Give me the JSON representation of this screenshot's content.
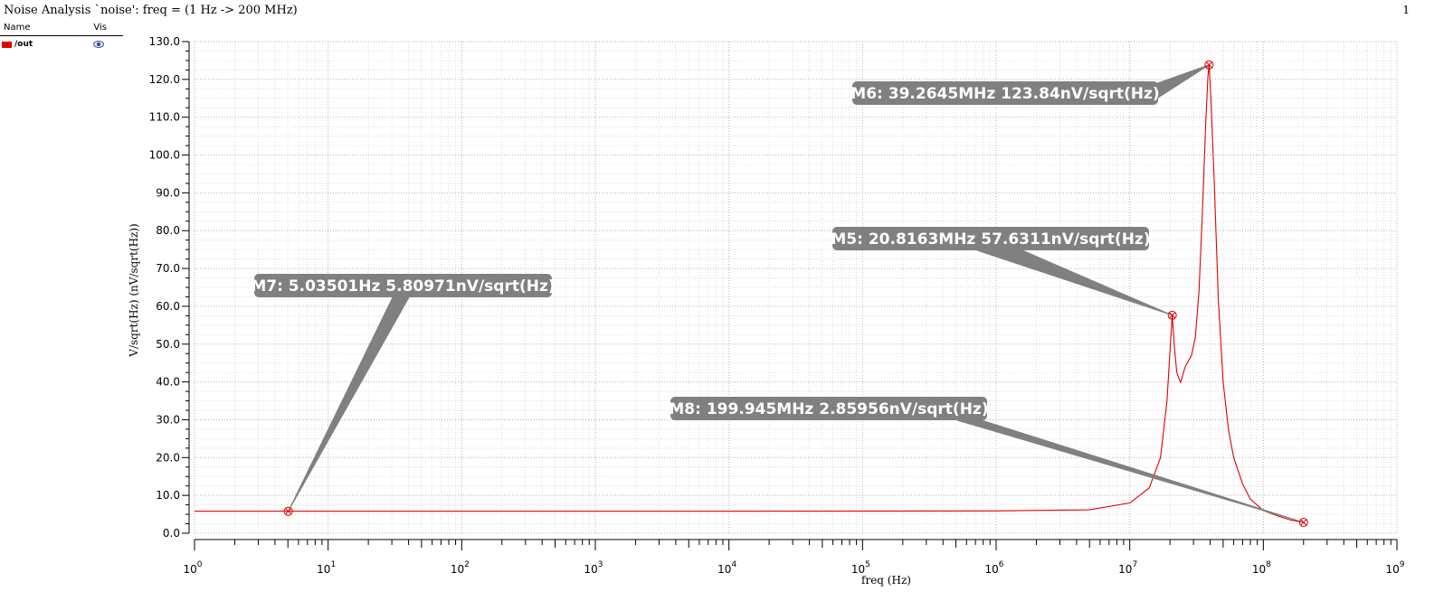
{
  "window": {
    "title": "Noise Analysis `noise': freq = (1 Hz -> 200 MHz)",
    "page_number": "1"
  },
  "legend": {
    "header_name": "Name",
    "header_vis": "Vis",
    "items": [
      {
        "label": "/out",
        "color": "#e00000",
        "icon": "eye-icon"
      }
    ]
  },
  "chart_data": {
    "type": "line",
    "xlabel": "freq (Hz)",
    "ylabel": "V/sqrt(Hz) (nV/sqrt(Hz))",
    "x_scale": "log",
    "xlim": [
      1,
      1000000000
    ],
    "ylim": [
      0,
      130
    ],
    "grid": true,
    "x_ticks": [
      {
        "base": "10",
        "exp": "0"
      },
      {
        "base": "10",
        "exp": "1"
      },
      {
        "base": "10",
        "exp": "2"
      },
      {
        "base": "10",
        "exp": "3"
      },
      {
        "base": "10",
        "exp": "4"
      },
      {
        "base": "10",
        "exp": "5"
      },
      {
        "base": "10",
        "exp": "6"
      },
      {
        "base": "10",
        "exp": "7"
      },
      {
        "base": "10",
        "exp": "8"
      },
      {
        "base": "10",
        "exp": "9"
      }
    ],
    "y_ticks": [
      "0.0",
      "10.0",
      "20.0",
      "30.0",
      "40.0",
      "50.0",
      "60.0",
      "70.0",
      "80.0",
      "90.0",
      "100.0",
      "110.0",
      "120.0",
      "130.0"
    ],
    "series": [
      {
        "name": "/out",
        "color": "#e00000",
        "points": [
          [
            1,
            5.81
          ],
          [
            5.03501,
            5.80971
          ],
          [
            100,
            5.81
          ],
          [
            10000,
            5.82
          ],
          [
            1000000,
            5.9
          ],
          [
            5000000,
            6.2
          ],
          [
            10000000,
            8.0
          ],
          [
            14000000,
            12.0
          ],
          [
            17000000,
            20.0
          ],
          [
            19000000,
            35.0
          ],
          [
            20000000,
            48.0
          ],
          [
            20816300,
            57.6311
          ],
          [
            21500000,
            50.0
          ],
          [
            22500000,
            42.5
          ],
          [
            24000000,
            39.8
          ],
          [
            26000000,
            44.0
          ],
          [
            29000000,
            47.0
          ],
          [
            31000000,
            52.0
          ],
          [
            33000000,
            64.0
          ],
          [
            35000000,
            85.0
          ],
          [
            37000000,
            108.0
          ],
          [
            38500000,
            121.0
          ],
          [
            39264500,
            123.84
          ],
          [
            40500000,
            115.0
          ],
          [
            43000000,
            92.0
          ],
          [
            46000000,
            62.0
          ],
          [
            50000000,
            40.0
          ],
          [
            55000000,
            27.0
          ],
          [
            60000000,
            20.0
          ],
          [
            70000000,
            13.0
          ],
          [
            80000000,
            9.0
          ],
          [
            100000000,
            6.0
          ],
          [
            130000000,
            4.5
          ],
          [
            160000000,
            3.5
          ],
          [
            199945000,
            2.85956
          ]
        ]
      }
    ],
    "markers": [
      {
        "id": "M7",
        "x": 5.03501,
        "y": 5.80971,
        "label": "M7: 5.03501Hz 5.80971nV/sqrt(Hz)"
      },
      {
        "id": "M5",
        "x": 20816300,
        "y": 57.6311,
        "label": "M5: 20.8163MHz 57.6311nV/sqrt(Hz)"
      },
      {
        "id": "M6",
        "x": 39264500,
        "y": 123.84,
        "label": "M6: 39.2645MHz 123.84nV/sqrt(Hz)"
      },
      {
        "id": "M8",
        "x": 199945000,
        "y": 2.85956,
        "label": "M8: 199.945MHz 2.85956nV/sqrt(Hz)"
      }
    ],
    "marker_color": "#808080"
  }
}
